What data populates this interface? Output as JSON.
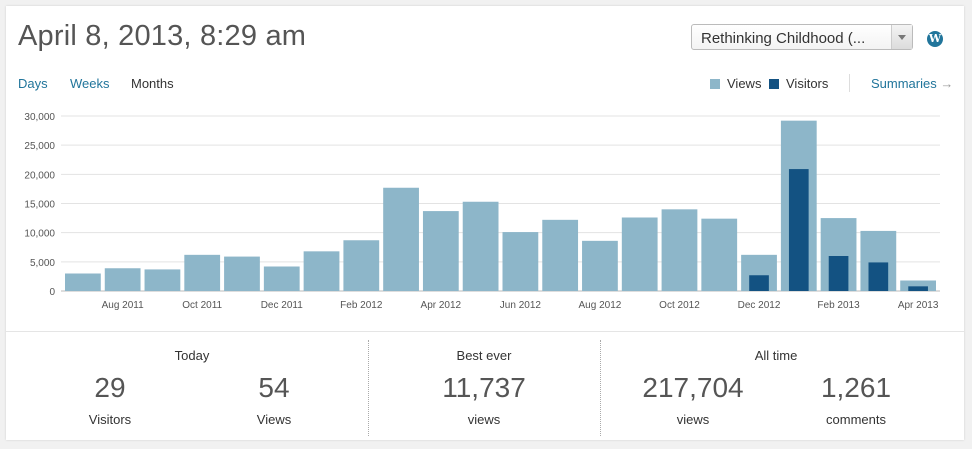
{
  "header": {
    "title": "April 8, 2013, 8:29 am",
    "site_select_value": "Rethinking Childhood (..."
  },
  "tabs": [
    {
      "label": "Days",
      "active": false
    },
    {
      "label": "Weeks",
      "active": false
    },
    {
      "label": "Months",
      "active": true
    }
  ],
  "legend": {
    "views_label": "Views",
    "visitors_label": "Visitors",
    "views_color": "#8db6c9",
    "visitors_color": "#135282"
  },
  "summaries_label": "Summaries",
  "summaries_arrow": "→",
  "chart_data": {
    "type": "bar",
    "categories": [
      "Jul 2011",
      "Aug 2011",
      "Sep 2011",
      "Oct 2011",
      "Nov 2011",
      "Dec 2011",
      "Jan 2012",
      "Feb 2012",
      "Mar 2012",
      "Apr 2012",
      "May 2012",
      "Jun 2012",
      "Jul 2012",
      "Aug 2012",
      "Sep 2012",
      "Oct 2012",
      "Nov 2012",
      "Dec 2012",
      "Jan 2013",
      "Feb 2013",
      "Mar 2013",
      "Apr 2013"
    ],
    "tick_labels": [
      "",
      "Aug 2011",
      "",
      "Oct 2011",
      "",
      "Dec 2011",
      "",
      "Feb 2012",
      "",
      "Apr 2012",
      "",
      "Jun 2012",
      "",
      "Aug 2012",
      "",
      "Oct 2012",
      "",
      "Dec 2012",
      "",
      "Feb 2013",
      "",
      "Apr 2013"
    ],
    "series": [
      {
        "name": "Views",
        "values": [
          3000,
          3900,
          3700,
          6200,
          5900,
          4200,
          6800,
          8700,
          17700,
          13700,
          15300,
          10100,
          12200,
          8600,
          12600,
          14000,
          12400,
          6200,
          29200,
          12500,
          10300,
          1800
        ]
      },
      {
        "name": "Visitors",
        "values": [
          null,
          null,
          null,
          null,
          null,
          null,
          null,
          null,
          null,
          null,
          null,
          null,
          null,
          null,
          null,
          null,
          null,
          2700,
          20900,
          6000,
          4900,
          800
        ]
      }
    ],
    "yticks": [
      "0",
      "5,000",
      "10,000",
      "15,000",
      "20,000",
      "25,000",
      "30,000"
    ],
    "ylim": [
      0,
      30000
    ],
    "grid": true
  },
  "stats": {
    "today": {
      "label": "Today",
      "visitors": "29",
      "visitors_label": "Visitors",
      "views": "54",
      "views_label": "Views"
    },
    "best": {
      "label": "Best ever",
      "value": "11,737",
      "sub": "views"
    },
    "alltime": {
      "label": "All time",
      "views": "217,704",
      "views_label": "views",
      "comments": "1,261",
      "comments_label": "comments"
    }
  }
}
